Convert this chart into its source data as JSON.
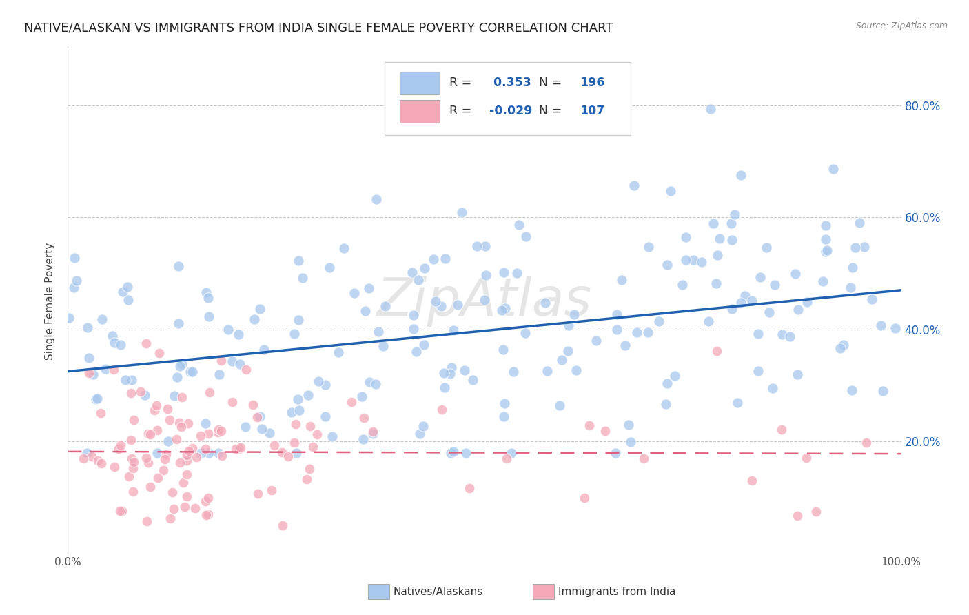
{
  "title": "NATIVE/ALASKAN VS IMMIGRANTS FROM INDIA SINGLE FEMALE POVERTY CORRELATION CHART",
  "source": "Source: ZipAtlas.com",
  "ylabel": "Single Female Poverty",
  "legend_labels": [
    "Natives/Alaskans",
    "Immigrants from India"
  ],
  "blue_color": "#A8C8EE",
  "pink_color": "#F4A8B8",
  "blue_line_color": "#2060B0",
  "pink_line_color": "#E06080",
  "R_blue": 0.353,
  "N_blue": 196,
  "R_pink": -0.029,
  "N_pink": 107,
  "ytick_labels": [
    "20.0%",
    "40.0%",
    "60.0%",
    "80.0%"
  ],
  "ytick_values": [
    0.2,
    0.4,
    0.6,
    0.8
  ],
  "xlim": [
    0.0,
    1.0
  ],
  "ylim": [
    0.0,
    0.9
  ],
  "background_color": "#ffffff",
  "grid_color": "#bbbbbb",
  "title_fontsize": 13,
  "watermark": "ZipAtlas"
}
